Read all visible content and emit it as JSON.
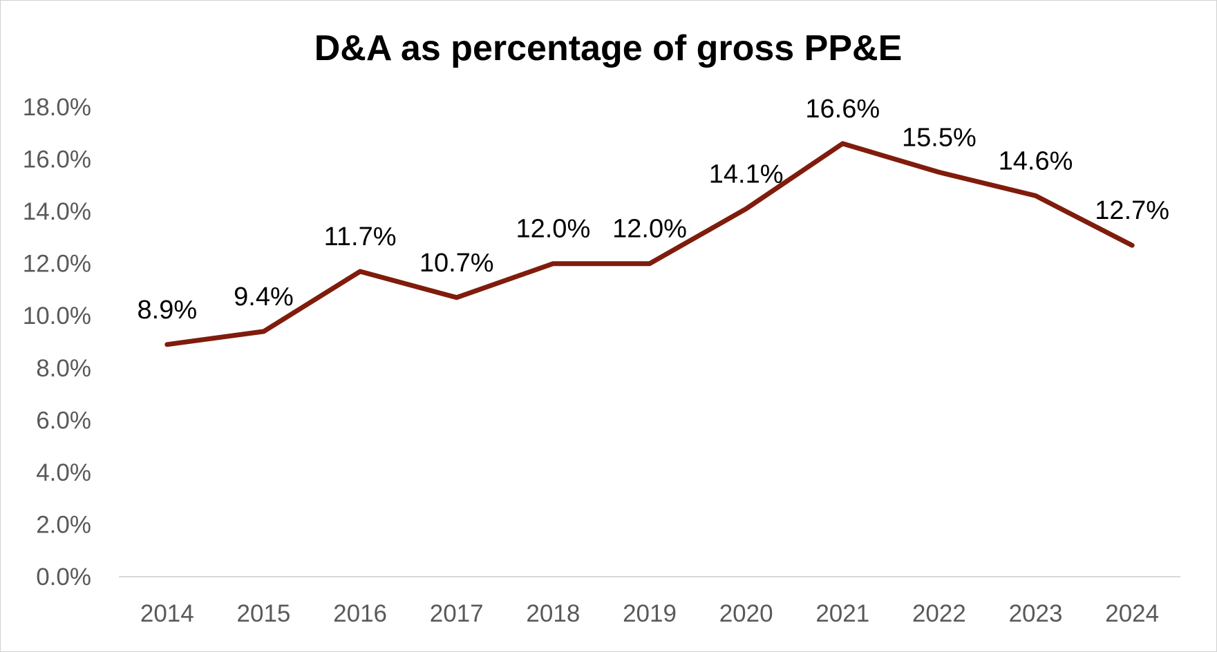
{
  "chart_data": {
    "type": "line",
    "title": "D&A as percentage of gross PP&E",
    "xlabel": "",
    "ylabel": "",
    "categories": [
      "2014",
      "2015",
      "2016",
      "2017",
      "2018",
      "2019",
      "2020",
      "2021",
      "2022",
      "2023",
      "2024"
    ],
    "series": [
      {
        "values": [
          8.9,
          9.4,
          11.7,
          10.7,
          12.0,
          12.0,
          14.1,
          16.6,
          15.5,
          14.6,
          12.7
        ],
        "data_labels": [
          "8.9%",
          "9.4%",
          "11.7%",
          "10.7%",
          "12.0%",
          "12.0%",
          "14.1%",
          "16.6%",
          "15.5%",
          "14.6%",
          "12.7%"
        ],
        "color": "#7f1c0c"
      }
    ],
    "ylim": [
      0,
      18
    ],
    "yticks": [
      "0.0%",
      "2.0%",
      "4.0%",
      "6.0%",
      "8.0%",
      "10.0%",
      "12.0%",
      "14.0%",
      "16.0%",
      "18.0%"
    ],
    "grid": false,
    "legend": "none",
    "axis_color": "#d9d9d9"
  }
}
